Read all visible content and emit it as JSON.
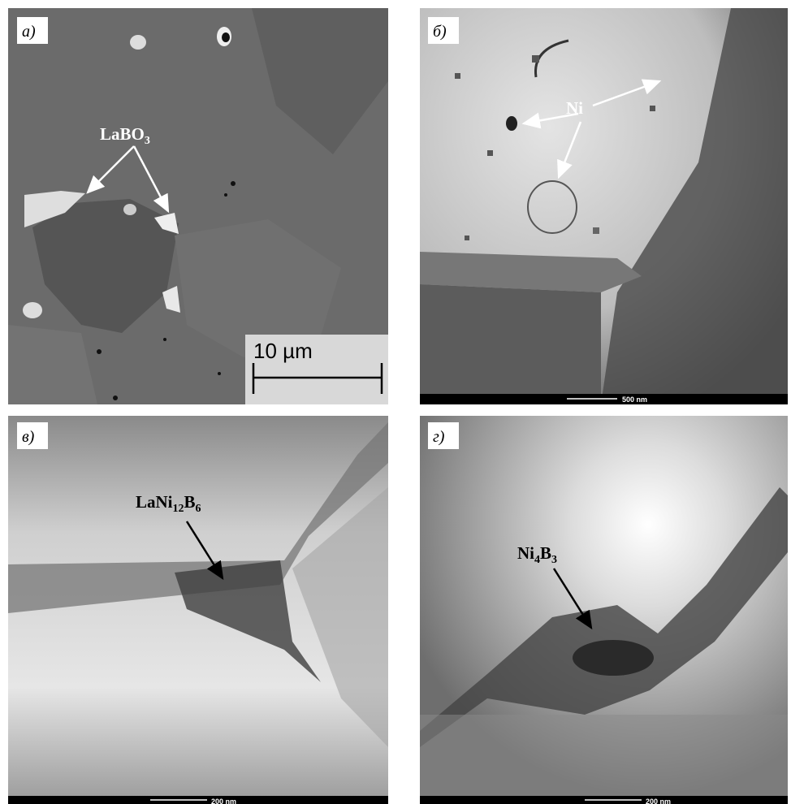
{
  "panels": [
    {
      "label": "а)",
      "annotation": [
        "LaBO",
        "3"
      ],
      "scale_bar": "10 µm"
    },
    {
      "label": "б)",
      "annotation": [
        "Ni"
      ],
      "scale_bar": "500 nm"
    },
    {
      "label": "в)",
      "annotation": [
        "LaNi",
        "12",
        "B",
        "6"
      ],
      "scale_bar": "200 nm"
    },
    {
      "label": "г)",
      "annotation": [
        "Ni",
        "4",
        "B",
        "3"
      ],
      "scale_bar": "200 nm"
    }
  ]
}
